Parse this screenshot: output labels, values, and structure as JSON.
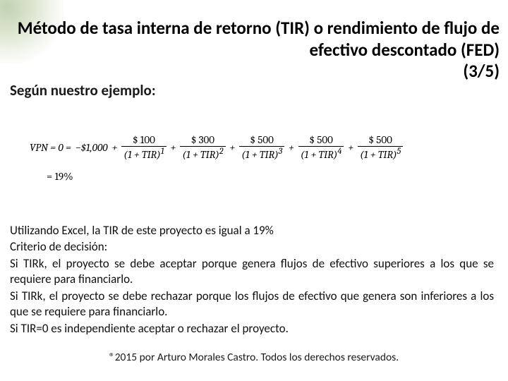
{
  "title": "Método de tasa interna de retorno (TIR) o rendimiento de flujo de efectivo descontado (FED)",
  "page_indicator": "(3/5)",
  "subtitle": "Según nuestro ejemplo:",
  "formula": {
    "lhs": "VPN = 0 =",
    "initial": "−$1,000",
    "terms": [
      {
        "num": "$ 100",
        "den_base": "(1 + TIR)",
        "exp": "1"
      },
      {
        "num": "$ 300",
        "den_base": "(1 + TIR)",
        "exp": "2"
      },
      {
        "num": "$ 500",
        "den_base": "(1 + TIR)",
        "exp": "3"
      },
      {
        "num": "$ 500",
        "den_base": "(1 + TIR)",
        "exp": "4"
      },
      {
        "num": "$ 500",
        "den_base": "(1 + TIR)",
        "exp": "5"
      }
    ],
    "result": "= 19%"
  },
  "body": {
    "p1": "Utilizando Excel, la TIR de este proyecto es igual a 19%",
    "p2": "Criterio de decisión:",
    "p3": "Si TIRk, el proyecto se debe aceptar porque genera flujos de efectivo superiores a los que se requiere para financiarlo.",
    "p4": "Si TIRk, el proyecto se debe rechazar porque los flujos de efectivo que genera son inferiores a los que se requiere para financiarlo.",
    "p5": "Si TIR=0 es independiente aceptar o rechazar el proyecto."
  },
  "footer": "®2015 por Arturo Morales Castro. Todos los derechos reservados.",
  "colors": {
    "text": "#000000",
    "deco_green": "#b8c9a6",
    "background": "#ffffff"
  }
}
